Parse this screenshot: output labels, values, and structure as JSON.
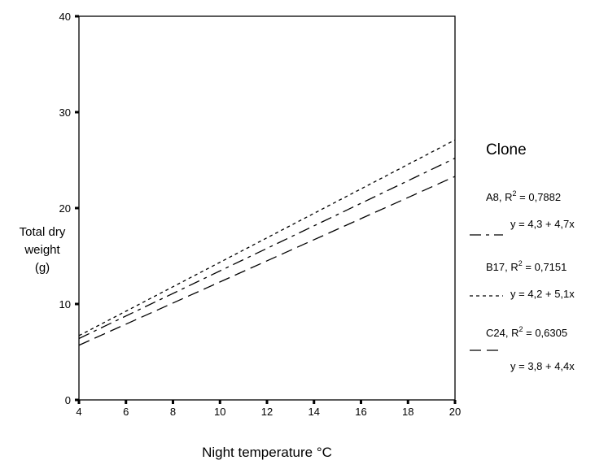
{
  "chart_data": {
    "type": "line",
    "xlabel": "Night temperature °C",
    "ylabel_lines": [
      "Total dry",
      "weight",
      "(g)"
    ],
    "xlim": [
      4,
      20
    ],
    "ylim": [
      0,
      40
    ],
    "xticks": [
      4,
      6,
      8,
      10,
      12,
      14,
      16,
      18,
      20
    ],
    "yticks": [
      0,
      10,
      20,
      30,
      40
    ],
    "grid": false,
    "legend_title": "Clone",
    "legend_position": "right",
    "series": [
      {
        "name": "A8",
        "r2_label": "R",
        "r2_sup": "2",
        "r2_value": " = 0,7882",
        "equation": "y = 4,3 + 4,7x",
        "dash": "long-short",
        "x": [
          4,
          20
        ],
        "y": [
          6.4,
          25.2
        ]
      },
      {
        "name": "B17",
        "r2_label": "R",
        "r2_sup": "2",
        "r2_value": " = 0,7151",
        "equation": "y = 4,2 + 5,1x",
        "dash": "short",
        "x": [
          4,
          20
        ],
        "y": [
          6.7,
          27.1
        ]
      },
      {
        "name": "C24",
        "r2_label": "R",
        "r2_sup": "2",
        "r2_value": " = 0,6305",
        "equation": "y = 3,8 + 4,4x",
        "dash": "long",
        "x": [
          4,
          20
        ],
        "y": [
          5.7,
          23.3
        ]
      }
    ]
  }
}
